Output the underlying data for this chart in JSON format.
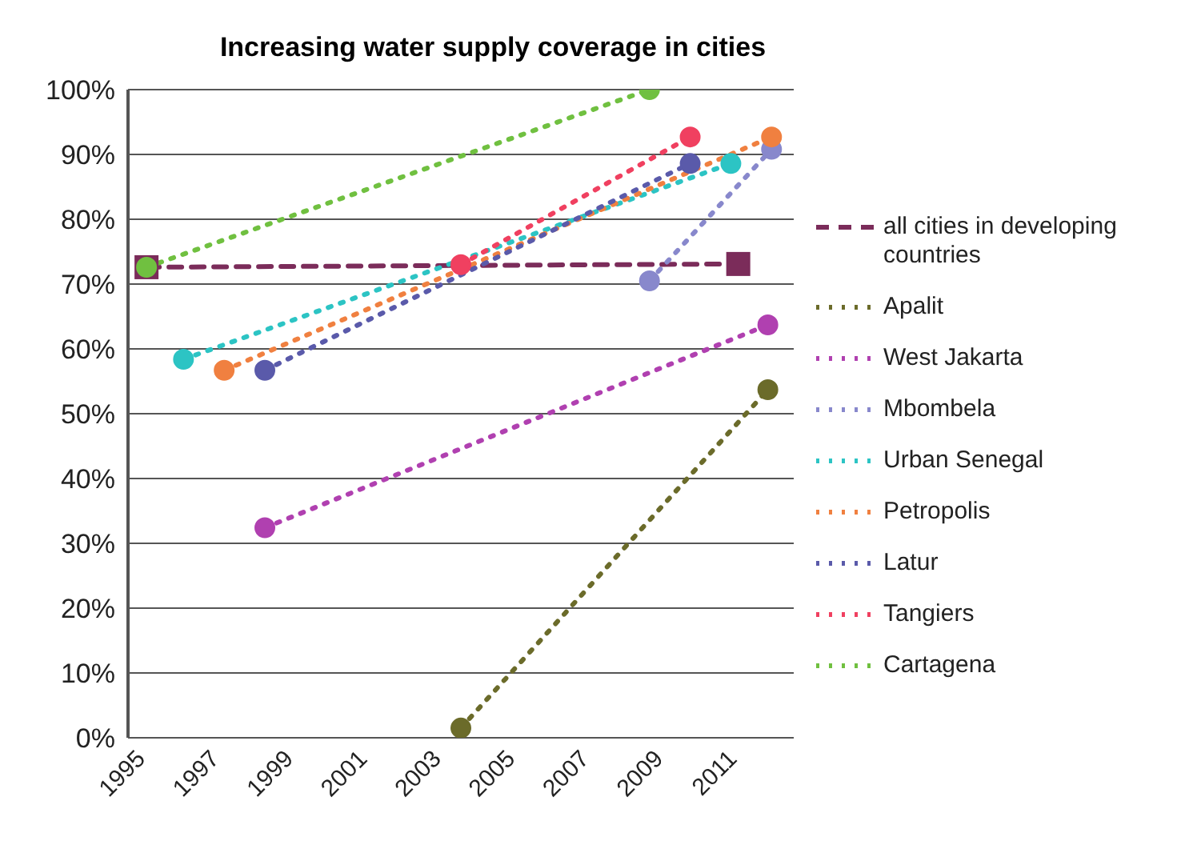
{
  "chart_data": {
    "type": "line",
    "title": "Increasing water supply coverage in cities",
    "xlim": [
      1994.5,
      2012.5
    ],
    "xticks": [
      1995,
      1997,
      1999,
      2001,
      2003,
      2005,
      2007,
      2009,
      2011
    ],
    "ylim": [
      0,
      100
    ],
    "yticks": [
      {
        "value": 0,
        "label": "0%"
      },
      {
        "value": 10,
        "label": "10%"
      },
      {
        "value": 20,
        "label": "20%"
      },
      {
        "value": 30,
        "label": "30%"
      },
      {
        "value": 40,
        "label": "40%"
      },
      {
        "value": 50,
        "label": "50%"
      },
      {
        "value": 60,
        "label": "60%"
      },
      {
        "value": 70,
        "label": "70%"
      },
      {
        "value": 80,
        "label": "80%"
      },
      {
        "value": 90,
        "label": "90%"
      },
      {
        "value": 100,
        "label": "100%"
      }
    ],
    "grid": "y",
    "legend": "right",
    "marker": "circle",
    "line_style": "dotted",
    "series": [
      {
        "name": "all cities in developing countries",
        "color": "#7b2c5a",
        "x": [
          1995,
          2011
        ],
        "values": [
          72.6,
          73.1
        ],
        "line_style": "dashed",
        "marker": "square"
      },
      {
        "name": "Apalit",
        "color": "#6b6b2a",
        "x": [
          2003.5,
          2011.8
        ],
        "values": [
          1.5,
          53.7
        ]
      },
      {
        "name": "West Jakarta",
        "color": "#b040b0",
        "x": [
          1998.2,
          2011.8
        ],
        "values": [
          32.4,
          63.7
        ]
      },
      {
        "name": "Mbombela",
        "color": "#8888cc",
        "x": [
          2008.6,
          2011.9
        ],
        "values": [
          70.5,
          90.8
        ]
      },
      {
        "name": "Urban Senegal",
        "color": "#2cc4c4",
        "x": [
          1996,
          2010.8
        ],
        "values": [
          58.4,
          88.6
        ]
      },
      {
        "name": "Petropolis",
        "color": "#f08040",
        "x": [
          1997.1,
          2011.9
        ],
        "values": [
          56.7,
          92.7
        ]
      },
      {
        "name": "Latur",
        "color": "#5a5aaa",
        "x": [
          1998.2,
          2009.7
        ],
        "values": [
          56.7,
          88.6
        ]
      },
      {
        "name": "Tangiers",
        "color": "#f04060",
        "x": [
          2003.5,
          2009.7
        ],
        "values": [
          73,
          92.7
        ]
      },
      {
        "name": "Cartagena",
        "color": "#70c040",
        "x": [
          1995,
          2008.6
        ],
        "values": [
          72.6,
          100
        ]
      }
    ]
  }
}
